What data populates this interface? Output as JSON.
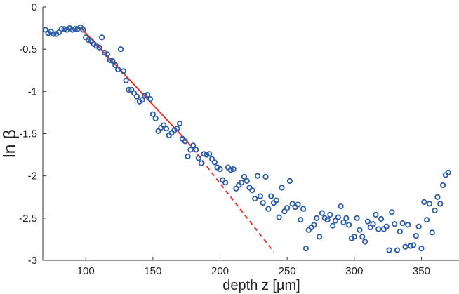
{
  "chart_data": {
    "type": "scatter",
    "title": "",
    "xlabel": "depth z [µm]",
    "ylabel": "ln β",
    "xlim": [
      68,
      378
    ],
    "ylim": [
      -3,
      0
    ],
    "xticks": [
      100,
      150,
      200,
      250,
      300,
      350
    ],
    "yticks": [
      0,
      -0.5,
      -1,
      -1.5,
      -2,
      -2.5,
      -3
    ],
    "xtick_labels": [
      "100",
      "150",
      "200",
      "250",
      "300",
      "350"
    ],
    "ytick_labels": [
      "0",
      "-0.5",
      "-1",
      "-1.5",
      "-2",
      "-2.5",
      "-3"
    ],
    "grid": false,
    "colors": {
      "points": "#2a5caa",
      "fit": "#e8322a"
    },
    "series": [
      {
        "kind": "points",
        "points": [
          [
            70,
            -0.27
          ],
          [
            72,
            -0.31
          ],
          [
            74,
            -0.29
          ],
          [
            76,
            -0.32
          ],
          [
            78,
            -0.32
          ],
          [
            80,
            -0.3
          ],
          [
            82,
            -0.26
          ],
          [
            84,
            -0.26
          ],
          [
            86,
            -0.27
          ],
          [
            88,
            -0.25
          ],
          [
            90,
            -0.27
          ],
          [
            92,
            -0.26
          ],
          [
            94,
            -0.26
          ],
          [
            96,
            -0.24
          ],
          [
            98,
            -0.27
          ],
          [
            100,
            -0.36
          ],
          [
            102,
            -0.39
          ],
          [
            104,
            -0.4
          ],
          [
            106,
            -0.44
          ],
          [
            108,
            -0.46
          ],
          [
            110,
            -0.48
          ],
          [
            112,
            -0.36
          ],
          [
            114,
            -0.54
          ],
          [
            116,
            -0.56
          ],
          [
            118,
            -0.63
          ],
          [
            120,
            -0.64
          ],
          [
            122,
            -0.69
          ],
          [
            124,
            -0.74
          ],
          [
            126,
            -0.5
          ],
          [
            128,
            -0.76
          ],
          [
            130,
            -0.87
          ],
          [
            132,
            -0.98
          ],
          [
            134,
            -0.98
          ],
          [
            136,
            -1.02
          ],
          [
            138,
            -1.06
          ],
          [
            140,
            -1.12
          ],
          [
            142,
            -1.1
          ],
          [
            144,
            -1.05
          ],
          [
            146,
            -1.04
          ],
          [
            148,
            -1.09
          ],
          [
            150,
            -1.27
          ],
          [
            152,
            -1.32
          ],
          [
            154,
            -1.47
          ],
          [
            156,
            -1.43
          ],
          [
            158,
            -1.4
          ],
          [
            160,
            -1.44
          ],
          [
            162,
            -1.52
          ],
          [
            164,
            -1.49
          ],
          [
            166,
            -1.46
          ],
          [
            168,
            -1.44
          ],
          [
            170,
            -1.38
          ],
          [
            172,
            -1.56
          ],
          [
            174,
            -1.59
          ],
          [
            176,
            -1.77
          ],
          [
            178,
            -1.69
          ],
          [
            180,
            -1.64
          ],
          [
            182,
            -1.69
          ],
          [
            184,
            -1.79
          ],
          [
            186,
            -1.85
          ],
          [
            188,
            -1.74
          ],
          [
            190,
            -1.75
          ],
          [
            192,
            -1.74
          ],
          [
            194,
            -1.8
          ],
          [
            196,
            -1.84
          ],
          [
            198,
            -1.9
          ],
          [
            200,
            -1.92
          ],
          [
            202,
            -2.05
          ],
          [
            204,
            -2.08
          ],
          [
            206,
            -1.9
          ],
          [
            208,
            -1.93
          ],
          [
            210,
            -1.92
          ],
          [
            212,
            -2.15
          ],
          [
            214,
            -2.11
          ],
          [
            216,
            -2.08
          ],
          [
            218,
            -2.01
          ],
          [
            220,
            -2.06
          ],
          [
            222,
            -2.14
          ],
          [
            224,
            -2.17
          ],
          [
            226,
            -2.27
          ],
          [
            228,
            -2.0
          ],
          [
            230,
            -2.24
          ],
          [
            232,
            -2.32
          ],
          [
            234,
            -2.01
          ],
          [
            236,
            -2.39
          ],
          [
            238,
            -2.24
          ],
          [
            240,
            -2.32
          ],
          [
            242,
            -2.29
          ],
          [
            244,
            -2.49
          ],
          [
            246,
            -2.14
          ],
          [
            248,
            -2.42
          ],
          [
            250,
            -2.38
          ],
          [
            252,
            -2.06
          ],
          [
            254,
            -2.33
          ],
          [
            256,
            -2.37
          ],
          [
            258,
            -2.34
          ],
          [
            260,
            -2.52
          ],
          [
            262,
            -2.39
          ],
          [
            264,
            -2.86
          ],
          [
            266,
            -2.64
          ],
          [
            268,
            -2.61
          ],
          [
            270,
            -2.58
          ],
          [
            272,
            -2.5
          ],
          [
            274,
            -2.72
          ],
          [
            276,
            -2.44
          ],
          [
            278,
            -2.5
          ],
          [
            280,
            -2.52
          ],
          [
            282,
            -2.46
          ],
          [
            284,
            -2.59
          ],
          [
            286,
            -2.53
          ],
          [
            288,
            -2.49
          ],
          [
            290,
            -2.36
          ],
          [
            292,
            -2.55
          ],
          [
            294,
            -2.5
          ],
          [
            296,
            -2.58
          ],
          [
            298,
            -2.74
          ],
          [
            300,
            -2.72
          ],
          [
            302,
            -2.5
          ],
          [
            304,
            -2.64
          ],
          [
            306,
            -2.72
          ],
          [
            308,
            -2.78
          ],
          [
            310,
            -2.54
          ],
          [
            312,
            -2.61
          ],
          [
            314,
            -2.57
          ],
          [
            316,
            -2.46
          ],
          [
            318,
            -2.63
          ],
          [
            320,
            -2.51
          ],
          [
            322,
            -2.63
          ],
          [
            324,
            -2.6
          ],
          [
            326,
            -2.88
          ],
          [
            328,
            -2.43
          ],
          [
            330,
            -2.57
          ],
          [
            332,
            -2.88
          ],
          [
            334,
            -2.66
          ],
          [
            336,
            -2.56
          ],
          [
            338,
            -2.84
          ],
          [
            340,
            -2.58
          ],
          [
            342,
            -2.83
          ],
          [
            344,
            -2.82
          ],
          [
            346,
            -2.71
          ],
          [
            348,
            -2.6
          ],
          [
            350,
            -2.86
          ],
          [
            352,
            -2.31
          ],
          [
            354,
            -2.52
          ],
          [
            356,
            -2.33
          ],
          [
            358,
            -2.67
          ],
          [
            360,
            -2.41
          ],
          [
            362,
            -2.25
          ],
          [
            364,
            -2.33
          ],
          [
            366,
            -2.11
          ],
          [
            368,
            -1.99
          ],
          [
            370,
            -1.96
          ]
        ]
      },
      {
        "kind": "fit-solid",
        "points": [
          [
            96,
            -0.24
          ],
          [
            176,
            -1.6
          ]
        ]
      },
      {
        "kind": "fit-dashed",
        "points": [
          [
            176,
            -1.6
          ],
          [
            240,
            -2.9
          ]
        ]
      }
    ]
  }
}
